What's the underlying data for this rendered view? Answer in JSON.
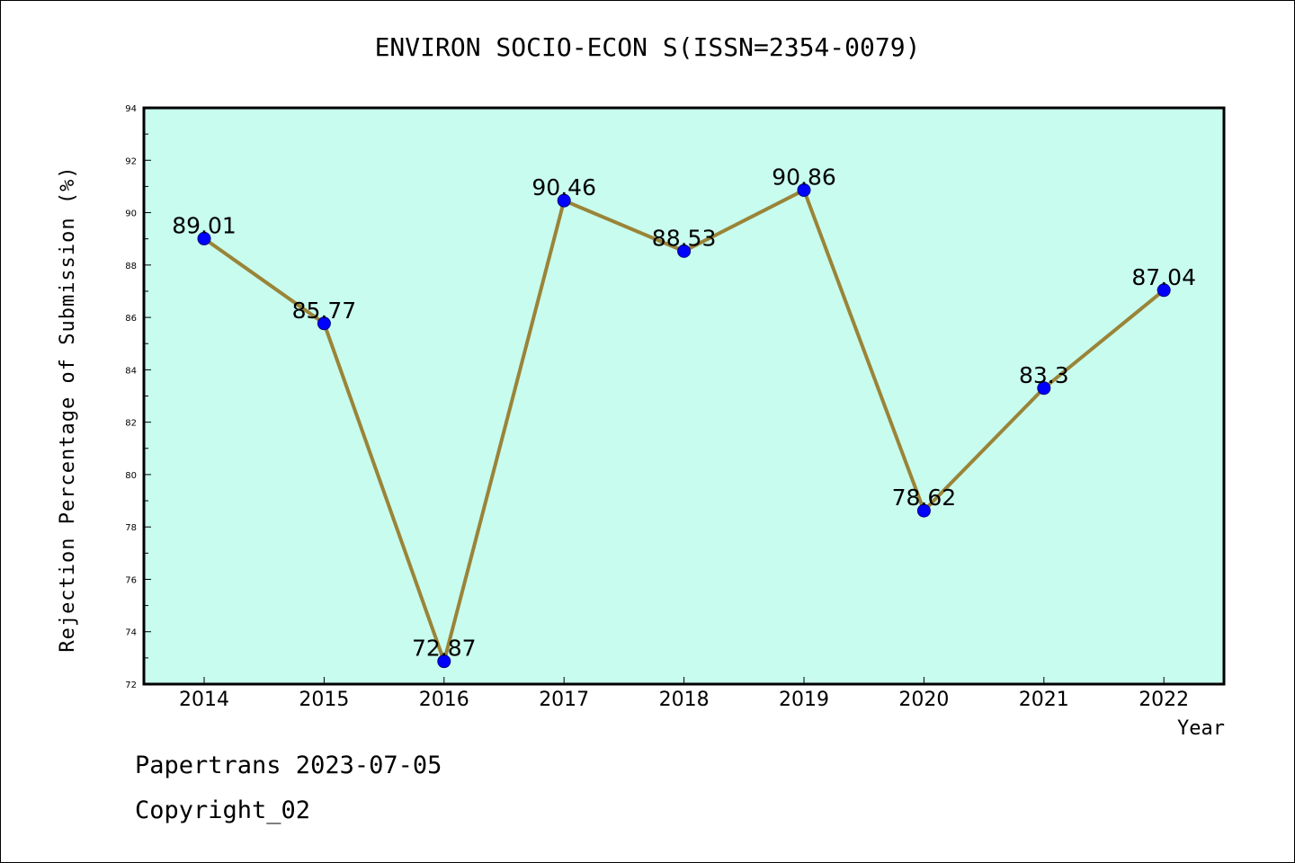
{
  "title": "ENVIRON SOCIO-ECON S(ISSN=2354-0079)",
  "footer": {
    "line1": "Papertrans 2023-07-05",
    "line2": "Copyright_02"
  },
  "colors": {
    "plot_background": "#c8fcee",
    "line": "#9a8438",
    "marker": "#0000ff",
    "axis": "#000000"
  },
  "chart_data": {
    "type": "line",
    "title": "ENVIRON SOCIO-ECON S(ISSN=2354-0079)",
    "xlabel": "Year",
    "ylabel": "Rejection Percentage of Submission (%)",
    "categories": [
      "2014",
      "2015",
      "2016",
      "2017",
      "2018",
      "2019",
      "2020",
      "2021",
      "2022"
    ],
    "values": [
      89.01,
      85.77,
      72.87,
      90.46,
      88.53,
      90.86,
      78.62,
      83.3,
      87.04
    ],
    "data_labels": [
      "89.01",
      "85.77",
      "72.87",
      "90.46",
      "88.53",
      "90.86",
      "78.62",
      "83.3",
      "87.04"
    ],
    "ylim": [
      72,
      94
    ],
    "y_ticks": [
      72,
      74,
      76,
      78,
      80,
      82,
      84,
      86,
      88,
      90,
      92,
      94
    ],
    "grid": false,
    "legend": "none"
  }
}
